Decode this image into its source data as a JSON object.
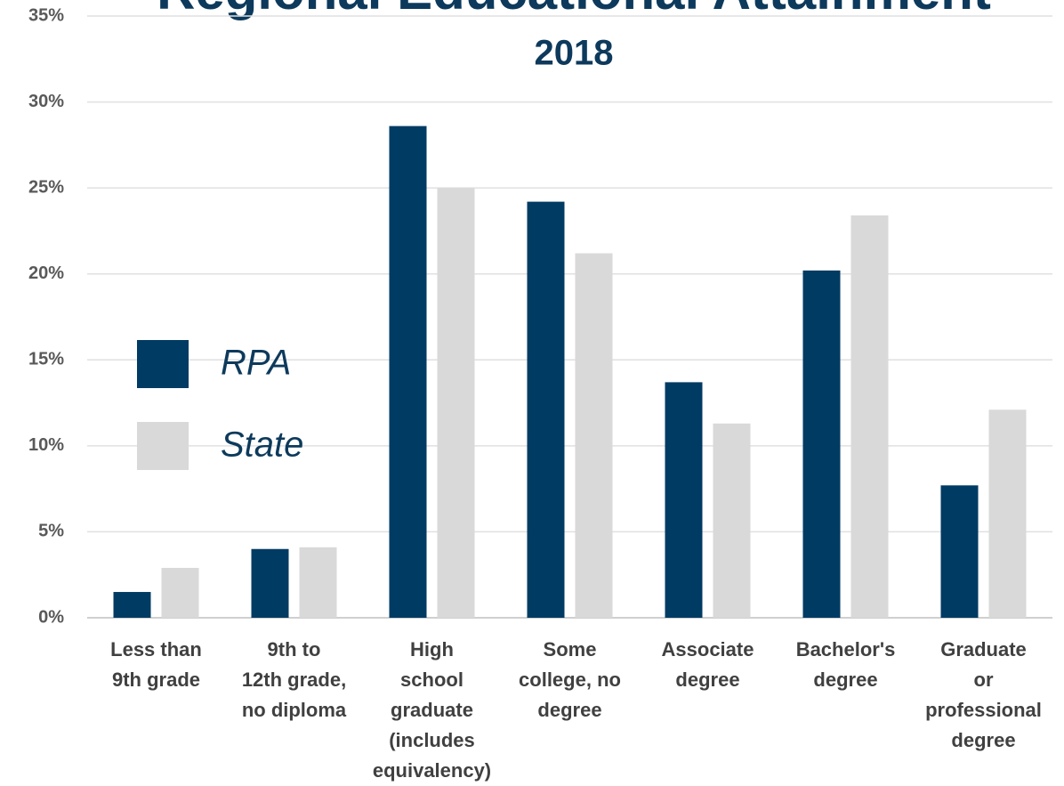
{
  "chart_data": {
    "type": "bar",
    "title": "Regional Educational Attainment",
    "subtitle": "2018",
    "categories": [
      "Less than\n9th grade",
      "9th to\n12th grade,\nno diploma",
      "High\nschool\ngraduate\n(includes\nequivalency)",
      "Some\ncollege, no\ndegree",
      "Associate\ndegree",
      "Bachelor's\ndegree",
      "Graduate\nor\nprofessional\ndegree"
    ],
    "series": [
      {
        "name": "RPA",
        "color": "#003b63",
        "values": [
          1.5,
          4.0,
          28.6,
          24.2,
          13.7,
          20.2,
          7.7
        ]
      },
      {
        "name": "State",
        "color": "#d9d9d9",
        "values": [
          2.9,
          4.1,
          25.0,
          21.2,
          11.3,
          23.4,
          12.1
        ]
      }
    ],
    "ylim": [
      0,
      35
    ],
    "yticks": [
      {
        "value": 0,
        "label": "0%"
      },
      {
        "value": 5,
        "label": "5%"
      },
      {
        "value": 10,
        "label": "10%"
      },
      {
        "value": 15,
        "label": "15%"
      },
      {
        "value": 20,
        "label": "20%"
      },
      {
        "value": 25,
        "label": "25%"
      },
      {
        "value": 30,
        "label": "30%"
      },
      {
        "value": 35,
        "label": "35%"
      }
    ],
    "grid": true,
    "legend": "left"
  }
}
